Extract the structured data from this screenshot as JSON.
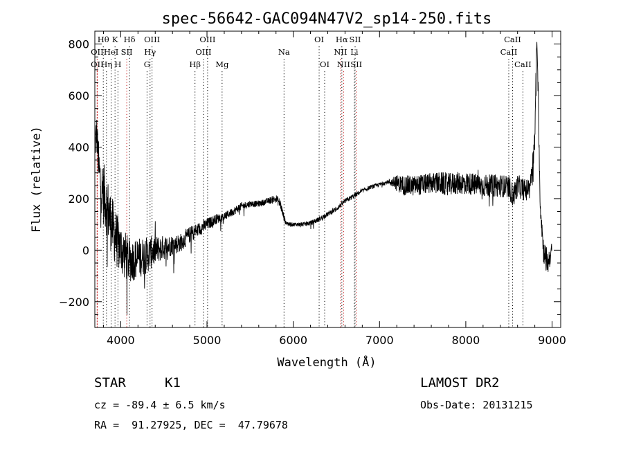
{
  "chart_data": {
    "type": "line",
    "title": "spec-56642-GAC094N47V2_sp14-250.fits",
    "xlabel": "Wavelength (Å)",
    "ylabel": "Flux (relative)",
    "xlim": [
      3700,
      9100
    ],
    "ylim": [
      -300,
      850
    ],
    "xticks": [
      4000,
      5000,
      6000,
      7000,
      8000,
      9000
    ],
    "yticks": [
      -200,
      0,
      200,
      400,
      600,
      800
    ],
    "grid": false,
    "spectrum_keypoints": {
      "x": [
        3700,
        3720,
        3750,
        3780,
        3820,
        3870,
        3930,
        3990,
        4050,
        4100,
        4200,
        4300,
        4400,
        4500,
        4600,
        4700,
        4800,
        4900,
        5000,
        5100,
        5200,
        5300,
        5400,
        5500,
        5600,
        5700,
        5800,
        5850,
        5880,
        5910,
        5950,
        6000,
        6100,
        6200,
        6300,
        6400,
        6500,
        6600,
        6700,
        6800,
        6900,
        7000,
        7100,
        7200,
        7300,
        7400,
        7500,
        7600,
        7700,
        7800,
        7900,
        8000,
        8100,
        8200,
        8300,
        8400,
        8500,
        8550,
        8600,
        8650,
        8700,
        8750,
        8800,
        8820,
        8840,
        8860,
        8880,
        8900,
        8950,
        9000
      ],
      "y": [
        400,
        460,
        300,
        240,
        200,
        130,
        60,
        10,
        -20,
        -40,
        -30,
        -20,
        0,
        10,
        20,
        30,
        60,
        80,
        100,
        120,
        130,
        150,
        170,
        180,
        180,
        190,
        200,
        180,
        140,
        110,
        100,
        100,
        100,
        105,
        120,
        140,
        160,
        190,
        210,
        230,
        245,
        255,
        265,
        260,
        250,
        250,
        255,
        260,
        260,
        255,
        260,
        260,
        255,
        250,
        250,
        250,
        245,
        210,
        250,
        240,
        230,
        260,
        420,
        820,
        600,
        200,
        100,
        0,
        -50,
        0
      ]
    },
    "spectrum_noise": [
      80,
      90,
      120,
      140,
      160,
      150,
      140,
      130,
      120,
      110,
      100,
      90,
      70,
      60,
      50,
      45,
      40,
      35,
      30,
      25,
      20,
      20,
      20,
      15,
      15,
      15,
      20,
      25,
      20,
      15,
      10,
      10,
      10,
      12,
      12,
      12,
      12,
      12,
      12,
      10,
      10,
      10,
      10,
      40,
      50,
      50,
      50,
      50,
      55,
      55,
      55,
      55,
      55,
      55,
      55,
      55,
      55,
      60,
      55,
      55,
      55,
      40,
      60,
      40,
      60,
      60,
      60,
      60,
      60,
      40
    ],
    "spectral_lines": [
      {
        "label": "Hθ",
        "wave": 3798,
        "row": 0,
        "color": "#000000"
      },
      {
        "label": "K",
        "wave": 3934,
        "row": 0,
        "color": "#000000"
      },
      {
        "label": "Hδ",
        "wave": 4102,
        "row": 0,
        "color": "#000000"
      },
      {
        "label": "OIII",
        "wave": 4363,
        "row": 0,
        "color": "#000000"
      },
      {
        "label": "OIII",
        "wave": 5007,
        "row": 0,
        "color": "#000000"
      },
      {
        "label": "OI",
        "wave": 6300,
        "row": 0,
        "color": "#000000"
      },
      {
        "label": "Hα",
        "wave": 6563,
        "row": 0,
        "color": "#000000"
      },
      {
        "label": "SII",
        "wave": 6717,
        "row": 0,
        "color": "#000000"
      },
      {
        "label": "CaII",
        "wave": 8542,
        "row": 0,
        "color": "#000000"
      },
      {
        "label": "OII",
        "wave": 3727,
        "row": 1,
        "color": "#c00000"
      },
      {
        "label": "HeI",
        "wave": 3889,
        "row": 1,
        "color": "#000000"
      },
      {
        "label": "SII",
        "wave": 4070,
        "row": 1,
        "color": "#c00000"
      },
      {
        "label": "Hγ",
        "wave": 4340,
        "row": 1,
        "color": "#000000"
      },
      {
        "label": "OIII",
        "wave": 4959,
        "row": 1,
        "color": "#000000"
      },
      {
        "label": "Na",
        "wave": 5893,
        "row": 1,
        "color": "#000000"
      },
      {
        "label": "NII",
        "wave": 6548,
        "row": 1,
        "color": "#c00000"
      },
      {
        "label": "Li",
        "wave": 6708,
        "row": 1,
        "color": "#000000"
      },
      {
        "label": "CaII",
        "wave": 8498,
        "row": 1,
        "color": "#000000"
      },
      {
        "label": "OII",
        "wave": 3727,
        "row": 2,
        "color": "#c00000"
      },
      {
        "label": "Hη",
        "wave": 3835,
        "row": 2,
        "color": "#000000"
      },
      {
        "label": "H",
        "wave": 3968,
        "row": 2,
        "color": "#000000"
      },
      {
        "label": "G",
        "wave": 4305,
        "row": 2,
        "color": "#000000"
      },
      {
        "label": "Hβ",
        "wave": 4861,
        "row": 2,
        "color": "#000000"
      },
      {
        "label": "Mg",
        "wave": 5175,
        "row": 2,
        "color": "#000000"
      },
      {
        "label": "OI",
        "wave": 6364,
        "row": 2,
        "color": "#000000"
      },
      {
        "label": "NII",
        "wave": 6583,
        "row": 2,
        "color": "#c00000"
      },
      {
        "label": "SII",
        "wave": 6731,
        "row": 2,
        "color": "#c00000"
      },
      {
        "label": "CaII",
        "wave": 8662,
        "row": 2,
        "color": "#000000"
      }
    ]
  },
  "info": {
    "object_class": "STAR",
    "subclass": "K1",
    "survey": "LAMOST DR2",
    "redshift": "cz = -89.4 ± 6.5 km/s",
    "obs_date": "Obs-Date: 20131215",
    "coords": "RA =  91.27925, DEC =  47.79678"
  }
}
